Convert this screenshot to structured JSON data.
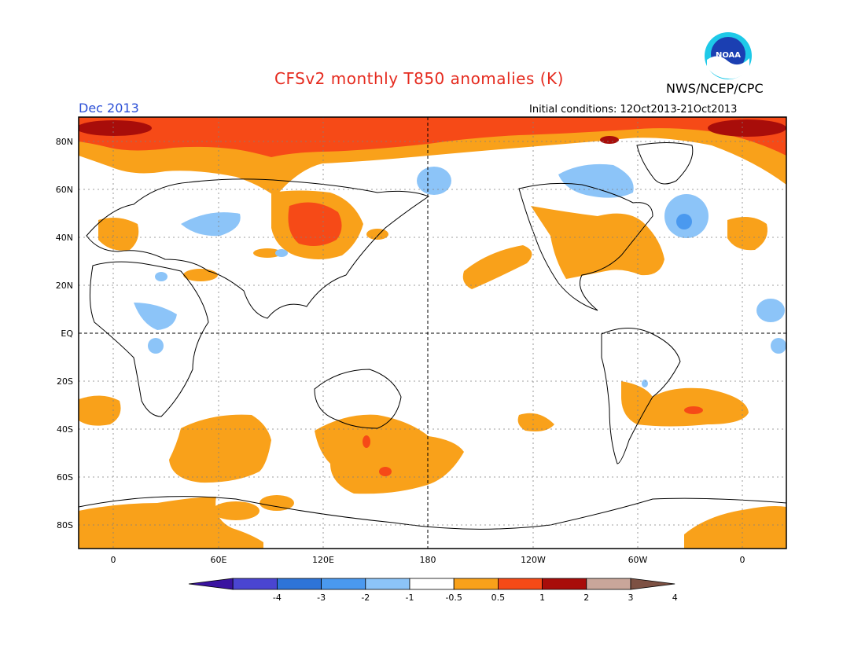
{
  "header": {
    "title": "CFSv2 monthly T850 anomalies (K)",
    "month": "Dec 2013",
    "initial_conditions": "Initial conditions: 12Oct2013-21Oct2013",
    "agency": "NWS/NCEP/CPC",
    "logo_text": "NOAA"
  },
  "map": {
    "projection": "equirectangular",
    "lat_labels": [
      "80N",
      "60N",
      "40N",
      "20N",
      "EQ",
      "20S",
      "40S",
      "60S",
      "80S"
    ],
    "lon_labels": [
      "0",
      "60E",
      "120E",
      "180",
      "120W",
      "60W",
      "0"
    ]
  },
  "colorbar": {
    "tick_labels": [
      "-4",
      "-3",
      "-2",
      "-1",
      "-0.5",
      "0.5",
      "1",
      "2",
      "3",
      "4"
    ],
    "colors": [
      "#3a13a0",
      "#4a45d1",
      "#2e74d8",
      "#4a99ef",
      "#8cc4f8",
      "#ffffff",
      "#f9a11a",
      "#f64a17",
      "#a80d0a",
      "#c9a69a",
      "#7d5143"
    ]
  },
  "legend_units": "K"
}
